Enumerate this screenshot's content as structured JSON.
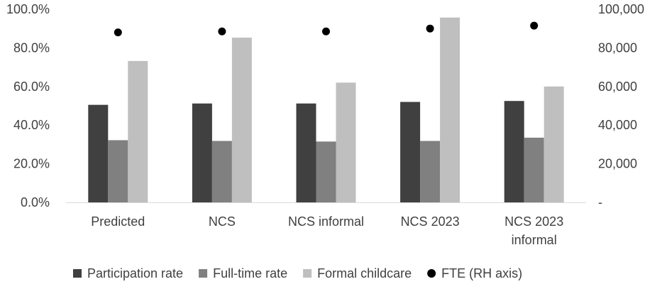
{
  "chart_data": {
    "type": "bar",
    "categories": [
      [
        "Predicted"
      ],
      [
        "NCS"
      ],
      [
        "NCS informal"
      ],
      [
        "NCS 2023"
      ],
      [
        "NCS 2023",
        "informal"
      ]
    ],
    "series": [
      {
        "name": "Participation rate",
        "axis": "left",
        "color": "#404040",
        "values": [
          50.5,
          51.2,
          51.2,
          52.0,
          52.5
        ]
      },
      {
        "name": "Full-time rate",
        "axis": "left",
        "color": "#808080",
        "values": [
          32.2,
          31.8,
          31.5,
          31.8,
          33.5
        ]
      },
      {
        "name": "Formal childcare",
        "axis": "left",
        "color": "#bfbfbf",
        "values": [
          73.2,
          85.3,
          62.0,
          95.7,
          60.0
        ]
      },
      {
        "name": "FTE (RH axis)",
        "axis": "right",
        "type": "scatter",
        "color": "#000000",
        "values": [
          88000,
          88500,
          88500,
          90000,
          91500
        ]
      }
    ],
    "y_left": {
      "lim": [
        0,
        100
      ],
      "ticks": [
        "0.0%",
        "20.0%",
        "40.0%",
        "60.0%",
        "80.0%",
        "100.0%"
      ]
    },
    "y_right": {
      "lim": [
        0,
        100000
      ],
      "ticks": [
        "-",
        "20,000",
        "40,000",
        "60,000",
        "80,000",
        "100,000"
      ]
    },
    "grid": false,
    "legend": "bottom"
  }
}
